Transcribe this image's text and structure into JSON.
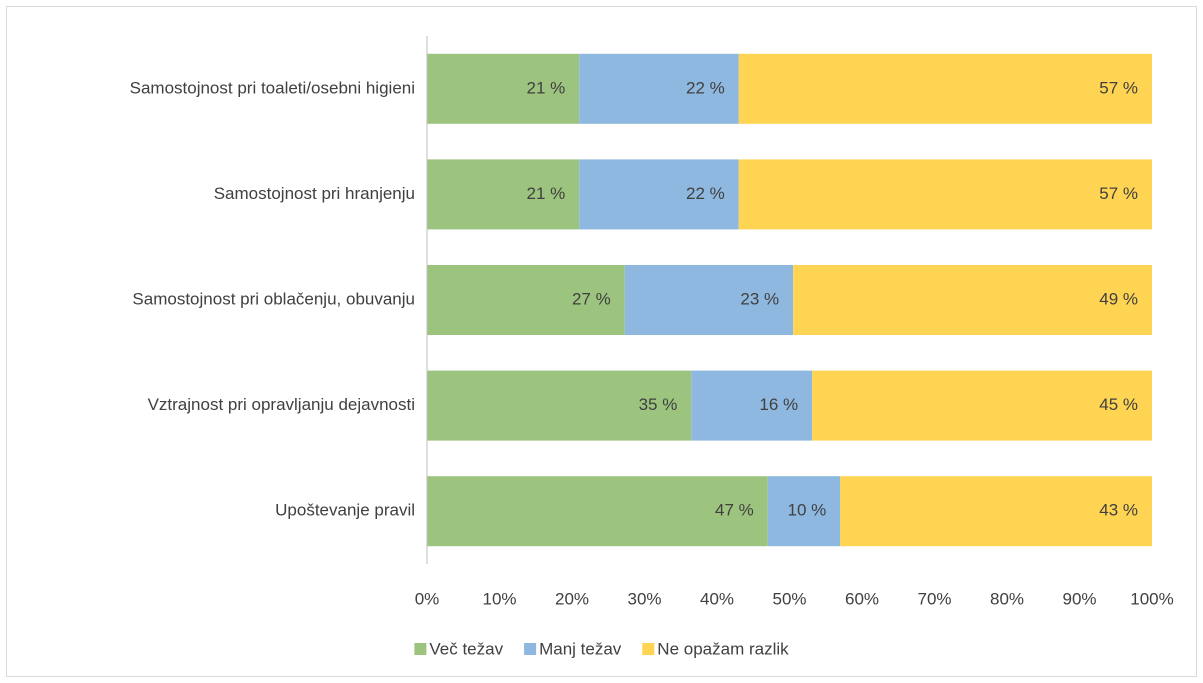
{
  "chart_data": {
    "type": "bar",
    "orientation": "horizontal",
    "stack": "percent",
    "categories": [
      "Samostojnost pri toaleti/osebni higieni",
      "Samostojnost pri hranjenju",
      "Samostojnost pri oblačenju, obuvanju",
      "Vztrajnost pri opravljanju dejavnosti",
      "Upoštevanje pravil"
    ],
    "series": [
      {
        "name": "Več težav",
        "color": "#9dc47e",
        "values": [
          21,
          21,
          27,
          35,
          47
        ],
        "value_labels": [
          "21 %",
          "21 %",
          "27 %",
          "35 %",
          "47 %"
        ]
      },
      {
        "name": "Manj težav",
        "color": "#8eb8e0",
        "values": [
          22,
          22,
          23,
          16,
          10
        ],
        "value_labels": [
          "22 %",
          "22 %",
          "23 %",
          "16 %",
          "10 %"
        ]
      },
      {
        "name": "Ne opažam razlik",
        "color": "#ffd452",
        "values": [
          57,
          57,
          49,
          45,
          43
        ],
        "value_labels": [
          "57 %",
          "57 %",
          "49 %",
          "45 %",
          "43 %"
        ]
      }
    ],
    "xlim": [
      0,
      100
    ],
    "xticks": [
      {
        "value": 0,
        "label": "0%"
      },
      {
        "value": 10,
        "label": "10%"
      },
      {
        "value": 20,
        "label": "20%"
      },
      {
        "value": 30,
        "label": "30%"
      },
      {
        "value": 40,
        "label": "40%"
      },
      {
        "value": 50,
        "label": "50%"
      },
      {
        "value": 60,
        "label": "60%"
      },
      {
        "value": 70,
        "label": "70%"
      },
      {
        "value": 80,
        "label": "80%"
      },
      {
        "value": 90,
        "label": "90%"
      },
      {
        "value": 100,
        "label": "100%"
      }
    ],
    "legend": "bottom",
    "grid": false
  }
}
